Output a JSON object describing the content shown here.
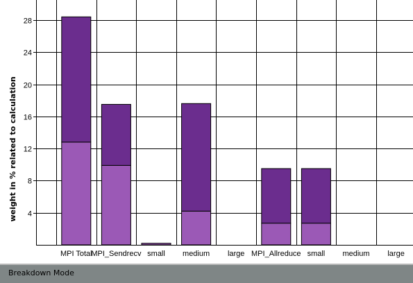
{
  "chart_data": {
    "type": "bar",
    "stacked": true,
    "categories": [
      "MPI Total",
      "MPI_Sendrecv",
      "small",
      "medium",
      "large",
      "MPI_Allreduce",
      "small",
      "medium",
      "large"
    ],
    "series": [
      {
        "values": [
          12.8,
          9.9,
          0.2,
          4.2,
          0,
          2.7,
          2.7,
          0,
          0
        ],
        "color": "#9b59b6"
      },
      {
        "values": [
          15.6,
          7.6,
          0,
          13.4,
          0,
          6.8,
          6.8,
          0,
          0
        ],
        "color": "#6b2d8e"
      }
    ],
    "title": "",
    "xlabel": "",
    "ylabel": "weight in % related to calculation",
    "ylim": [
      0,
      30.5
    ],
    "yticks": [
      4,
      8,
      12,
      16,
      20,
      24,
      28
    ],
    "grid": true,
    "legend": "none"
  },
  "status_bar": {
    "label": "Breakdown Mode"
  }
}
